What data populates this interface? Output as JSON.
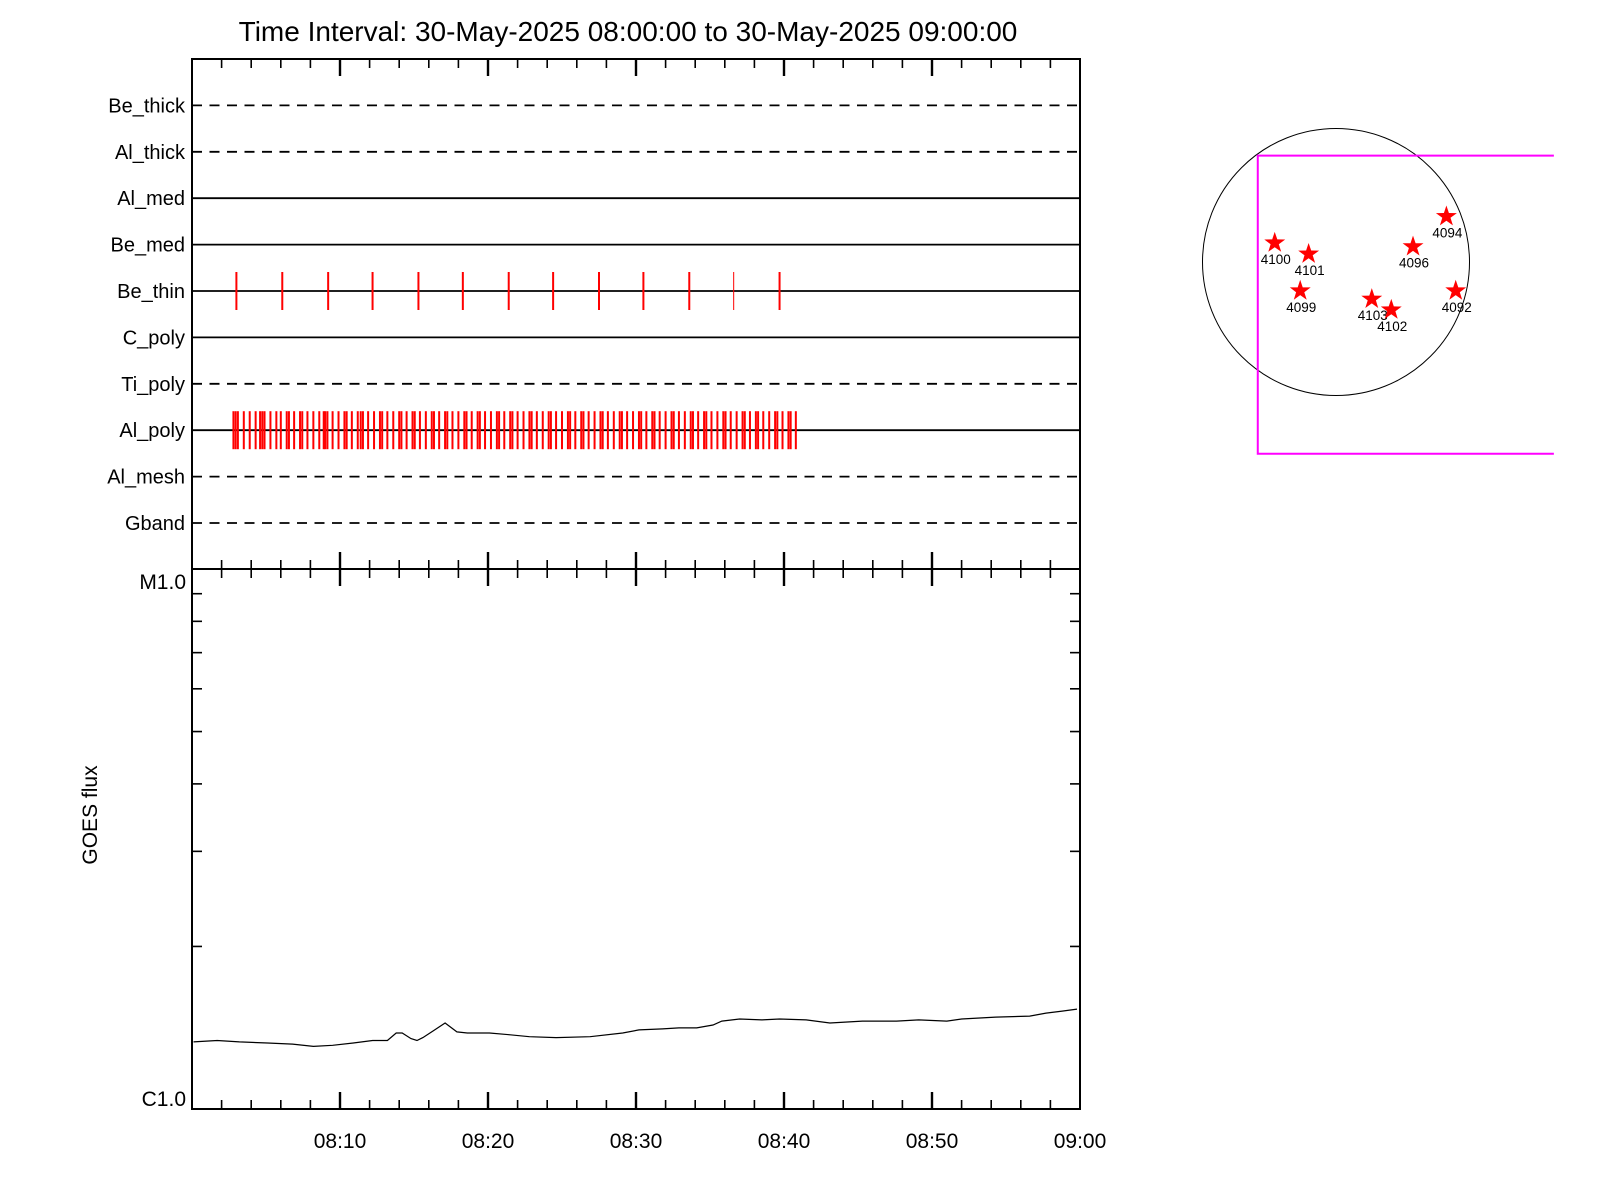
{
  "title": "Time Interval: 30-May-2025 08:00:00 to 30-May-2025 09:00:00",
  "colors": {
    "foreground": "#000000",
    "exposure_tick_red": "#FF0000",
    "fov_magenta": "#FF00FF",
    "background": "#FFFFFF"
  },
  "chart_data": [
    {
      "type": "timeline",
      "title": "Instrument filter exposure timeline",
      "x_axis": {
        "start_time": "08:00",
        "end_time": "09:00",
        "range_minutes": [
          0,
          60
        ],
        "minor_step_minutes": 2,
        "major_step_minutes": 10
      },
      "exposure_tick_color": "#FF0000",
      "rows": [
        {
          "label": "Be_thick",
          "line_style": "dashed",
          "exposures_minutes": []
        },
        {
          "label": "Al_thick",
          "line_style": "dashed",
          "exposures_minutes": []
        },
        {
          "label": "Al_med",
          "line_style": "solid",
          "exposures_minutes": []
        },
        {
          "label": "Be_med",
          "line_style": "solid",
          "exposures_minutes": []
        },
        {
          "label": "Be_thin",
          "line_style": "solid",
          "exposures_minutes": [
            3.0,
            6.1,
            9.2,
            12.2,
            15.3,
            18.3,
            21.4,
            24.4,
            27.5,
            30.5,
            33.6,
            36.6,
            39.7
          ],
          "thin_exposures_minutes": [
            36.6
          ]
        },
        {
          "label": "C_poly",
          "line_style": "solid",
          "exposures_minutes": []
        },
        {
          "label": "Ti_poly",
          "line_style": "dashed",
          "exposures_minutes": []
        },
        {
          "label": "Al_poly",
          "line_style": "solid",
          "exposures_minutes": [
            2.8,
            2.95,
            3.1,
            3.5,
            3.9,
            4.3,
            4.6,
            4.75,
            4.9,
            5.3,
            5.7,
            6.0,
            6.4,
            6.55,
            6.9,
            7.3,
            7.45,
            7.8,
            8.2,
            8.6,
            8.9,
            9.0,
            9.15,
            9.5,
            9.9,
            10.3,
            10.45,
            10.8,
            11.2,
            11.4,
            11.55,
            11.9,
            12.3,
            12.7,
            12.85,
            13.2,
            13.6,
            14.0,
            14.15,
            14.5,
            14.9,
            15.05,
            15.4,
            15.8,
            16.2,
            16.35,
            16.7,
            17.1,
            17.25,
            17.6,
            18.0,
            18.4,
            18.55,
            18.9,
            19.3,
            19.45,
            19.8,
            20.2,
            20.6,
            20.75,
            21.1,
            21.5,
            21.65,
            22.0,
            22.4,
            22.8,
            22.95,
            23.3,
            23.7,
            24.1,
            24.25,
            24.6,
            25.0,
            25.4,
            25.55,
            25.9,
            26.3,
            26.45,
            26.8,
            27.2,
            27.6,
            27.75,
            28.1,
            28.5,
            28.9,
            29.05,
            29.4,
            29.8,
            30.2,
            30.35,
            30.7,
            31.1,
            31.25,
            31.6,
            32.0,
            32.4,
            32.55,
            32.9,
            33.3,
            33.7,
            33.85,
            34.2,
            34.6,
            34.75,
            35.1,
            35.5,
            35.9,
            36.05,
            36.4,
            36.8,
            37.2,
            37.35,
            37.7,
            38.1,
            38.25,
            38.6,
            39.0,
            39.4,
            39.55,
            39.9,
            40.3,
            40.45,
            40.8
          ]
        },
        {
          "label": "Al_mesh",
          "line_style": "dashed",
          "exposures_minutes": []
        },
        {
          "label": "Gband",
          "line_style": "dashed",
          "exposures_minutes": []
        }
      ]
    },
    {
      "type": "line",
      "ylabel": "GOES flux",
      "y_axis": {
        "scale": "log",
        "top_label": "M1.0",
        "bottom_label": "C1.0",
        "top_flux_wm2": 1e-05,
        "bottom_flux_wm2": 1e-06,
        "minor_tick_flux_1e6": [
          9,
          8,
          7,
          6,
          5,
          4,
          3,
          2
        ]
      },
      "x_axis": {
        "tick_labels": [
          "08:10",
          "08:20",
          "08:30",
          "08:40",
          "08:50",
          "09:00"
        ],
        "tick_minutes": [
          10,
          20,
          30,
          40,
          50,
          60
        ],
        "minor_step_minutes": 2,
        "range_minutes": [
          0,
          60
        ]
      },
      "series": [
        {
          "name": "GOES flux",
          "minutes": [
            0.1,
            1.7,
            3.2,
            5.1,
            6.8,
            8.2,
            9.5,
            10.9,
            12.2,
            13.2,
            13.8,
            14.2,
            14.8,
            15.2,
            15.6,
            16.3,
            17.1,
            17.9,
            18.6,
            20.1,
            21.5,
            22.8,
            24.6,
            26.9,
            29.1,
            30.2,
            31.8,
            32.9,
            34.1,
            35.2,
            35.8,
            37.0,
            38.5,
            39.7,
            41.5,
            43.1,
            45.3,
            47.6,
            49.1,
            51.0,
            52.0,
            54.3,
            56.6,
            57.7,
            58.8,
            59.8
          ],
          "flux_1e6_wm2": [
            1.331,
            1.339,
            1.331,
            1.325,
            1.319,
            1.306,
            1.312,
            1.325,
            1.339,
            1.339,
            1.383,
            1.383,
            1.35,
            1.339,
            1.356,
            1.395,
            1.443,
            1.389,
            1.383,
            1.383,
            1.372,
            1.361,
            1.356,
            1.361,
            1.383,
            1.401,
            1.407,
            1.413,
            1.413,
            1.431,
            1.455,
            1.468,
            1.462,
            1.468,
            1.462,
            1.443,
            1.455,
            1.455,
            1.462,
            1.455,
            1.468,
            1.48,
            1.486,
            1.505,
            1.518,
            1.531
          ]
        }
      ]
    },
    {
      "type": "scatter",
      "title": "Solar disk with NOAA active regions and field-of-view box",
      "marker": {
        "shape": "star",
        "color": "#FF0000"
      },
      "fov_box": {
        "left": -0.586,
        "top": -0.797,
        "right": 1.632,
        "bottom": 1.436,
        "color": "#FF00FF"
      },
      "regions": [
        {
          "noaa": "4100",
          "x": -0.459,
          "y": -0.143
        },
        {
          "noaa": "4101",
          "x": -0.205,
          "y": -0.06
        },
        {
          "noaa": "4094",
          "x": 0.827,
          "y": -0.341
        },
        {
          "noaa": "4096",
          "x": 0.577,
          "y": -0.115
        },
        {
          "noaa": "4099",
          "x": -0.268,
          "y": 0.216
        },
        {
          "noaa": "4103",
          "x": 0.268,
          "y": 0.278
        },
        {
          "noaa": "4102",
          "x": 0.414,
          "y": 0.359
        },
        {
          "noaa": "4092",
          "x": 0.897,
          "y": 0.216
        }
      ]
    }
  ]
}
